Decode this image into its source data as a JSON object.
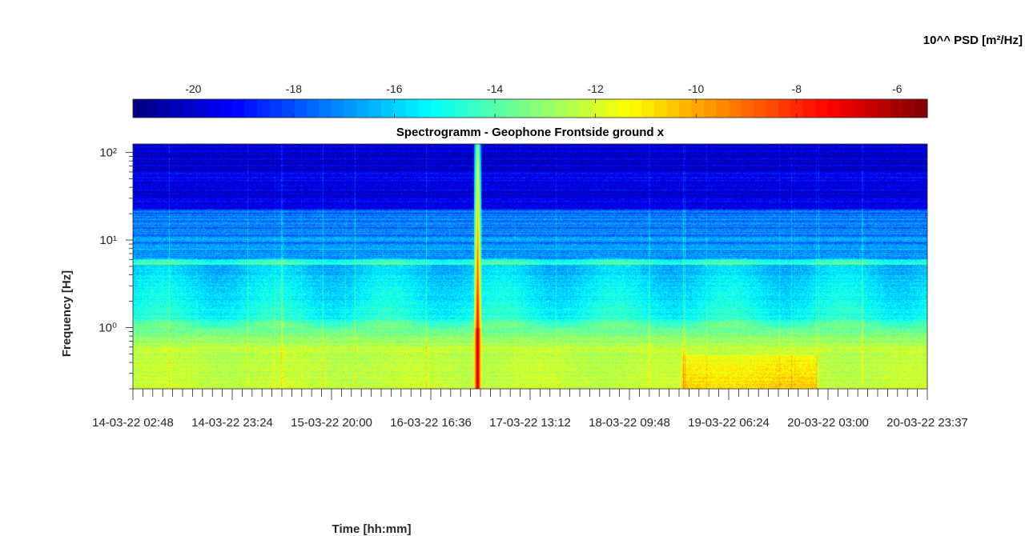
{
  "chart_data": {
    "type": "heatmap",
    "title": "Spectrogramm - Geophone Frontside ground x",
    "xlabel": "Time [hh:mm]",
    "ylabel": "Frequency [Hz]",
    "colorbar_label": "10^^ PSD [m²/Hz]",
    "colormap": "jet",
    "color_range": [
      -21.2,
      -5.4
    ],
    "colorbar_ticks": [
      -20,
      -18,
      -16,
      -14,
      -12,
      -10,
      -8,
      -6
    ],
    "y_scale": "log",
    "ylim": [
      0.2,
      125
    ],
    "y_ticks": [
      {
        "value": 1,
        "label": "10⁰"
      },
      {
        "value": 10,
        "label": "10¹"
      },
      {
        "value": 100,
        "label": "10²"
      }
    ],
    "xlim": [
      "14-03-22 02:48",
      "20-03-22 23:37"
    ],
    "x_ticks": [
      "14-03-22 02:48",
      "14-03-22 23:24",
      "15-03-22 20:00",
      "16-03-22 16:36",
      "17-03-22 13:12",
      "18-03-22 09:48",
      "19-03-22 06:24",
      "20-03-22 03:00",
      "20-03-22 23:37"
    ],
    "event": {
      "time": "17-03-22 02:15",
      "psd_peak": -5.5,
      "note_hidden": true
    }
  }
}
